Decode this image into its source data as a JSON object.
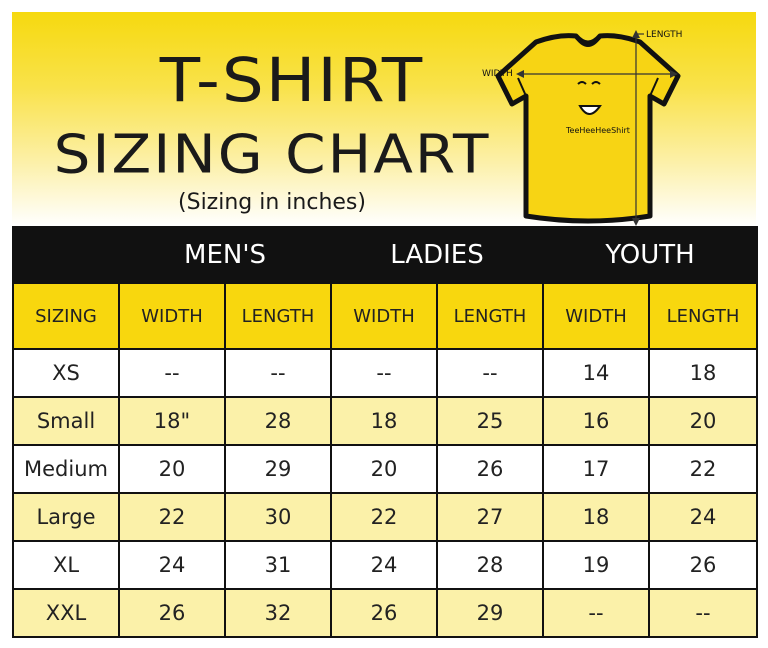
{
  "header": {
    "title_line1": "T-SHIRT",
    "title_line2": "SIZING CHART",
    "subtitle": "(Sizing in inches)"
  },
  "diagram": {
    "length_label": "LENGTH",
    "width_label": "WIDTH",
    "shirt_text": "TeeHeeHeeShirt",
    "shirt_color": "#f7d414"
  },
  "table": {
    "groups": [
      "MEN'S",
      "LADIES",
      "YOUTH"
    ],
    "columns": [
      "SIZING",
      "WIDTH",
      "LENGTH",
      "WIDTH",
      "LENGTH",
      "WIDTH",
      "LENGTH"
    ],
    "rows": [
      [
        "XS",
        "--",
        "--",
        "--",
        "--",
        "14",
        "18"
      ],
      [
        "Small",
        "18\"",
        "28",
        "18",
        "25",
        "16",
        "20"
      ],
      [
        "Medium",
        "20",
        "29",
        "20",
        "26",
        "17",
        "22"
      ],
      [
        "Large",
        "22",
        "30",
        "22",
        "27",
        "18",
        "24"
      ],
      [
        "XL",
        "24",
        "31",
        "24",
        "28",
        "19",
        "26"
      ],
      [
        "XXL",
        "26",
        "32",
        "26",
        "29",
        "--",
        "--"
      ]
    ]
  },
  "colors": {
    "header_band": "#111111",
    "subheader": "#f8d70e",
    "row_alt": "#fbf1a9",
    "banner_top": "#f6d90f"
  }
}
